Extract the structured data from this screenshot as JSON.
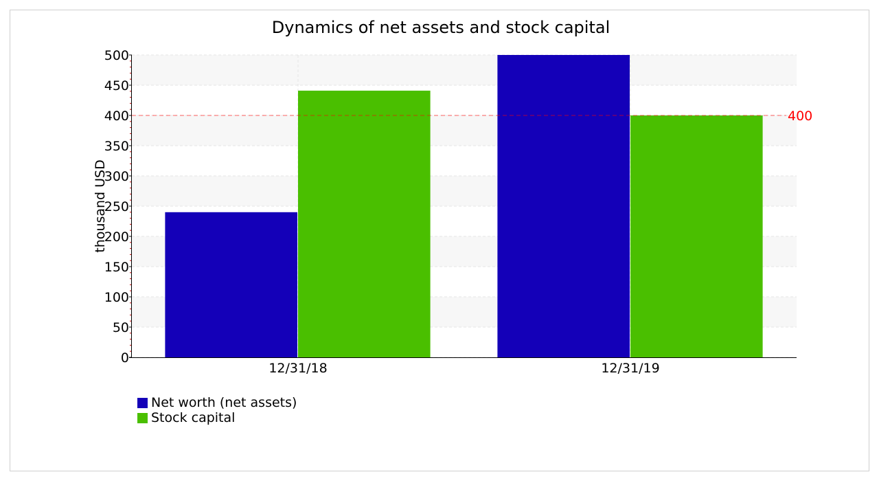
{
  "chart_data": {
    "type": "bar",
    "title": "Dynamics of net assets and stock capital",
    "ylabel": "thousand USD",
    "xlabel": "",
    "categories": [
      "12/31/18",
      "12/31/19"
    ],
    "series": [
      {
        "name": "Net worth (net assets)",
        "color": "#1400b8",
        "values": [
          240,
          500
        ]
      },
      {
        "name": "Stock capital",
        "color": "#4abf00",
        "values": [
          441,
          400
        ]
      }
    ],
    "ylim": [
      0,
      500
    ],
    "yticks": [
      0,
      50,
      100,
      150,
      200,
      250,
      300,
      350,
      400,
      450,
      500
    ],
    "reference_line": {
      "value": 400,
      "label": "400",
      "color": "#ff0000"
    },
    "grid": true,
    "legend_position": "bottom-left"
  }
}
